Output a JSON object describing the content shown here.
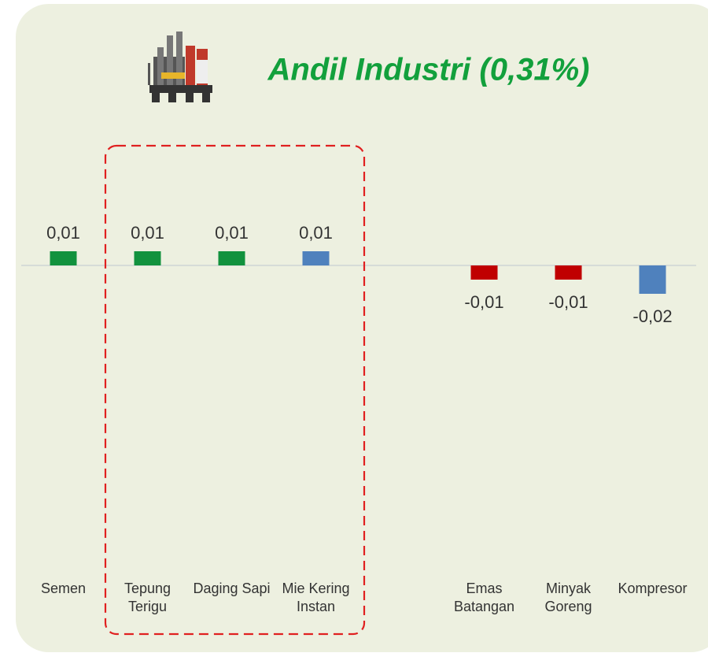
{
  "chart_data": {
    "type": "bar",
    "title": "Andil Industri (0,31%)",
    "categories": [
      "Semen",
      "Tepung Terigu",
      "Daging Sapi",
      "Mie Kering Instan",
      null,
      "Emas Batangan",
      "Minyak Goreng",
      "Kompresor"
    ],
    "values": [
      0.01,
      0.01,
      0.01,
      0.01,
      null,
      -0.01,
      -0.01,
      -0.02
    ],
    "value_labels": [
      "0,01",
      "0,01",
      "0,01",
      "0,01",
      null,
      "-0,01",
      "-0,01",
      "-0,02"
    ],
    "colors": [
      "#12923e",
      "#12923e",
      "#12923e",
      "#4f81bd",
      null,
      "#c00000",
      "#c00000",
      "#4f81bd"
    ]
  }
}
